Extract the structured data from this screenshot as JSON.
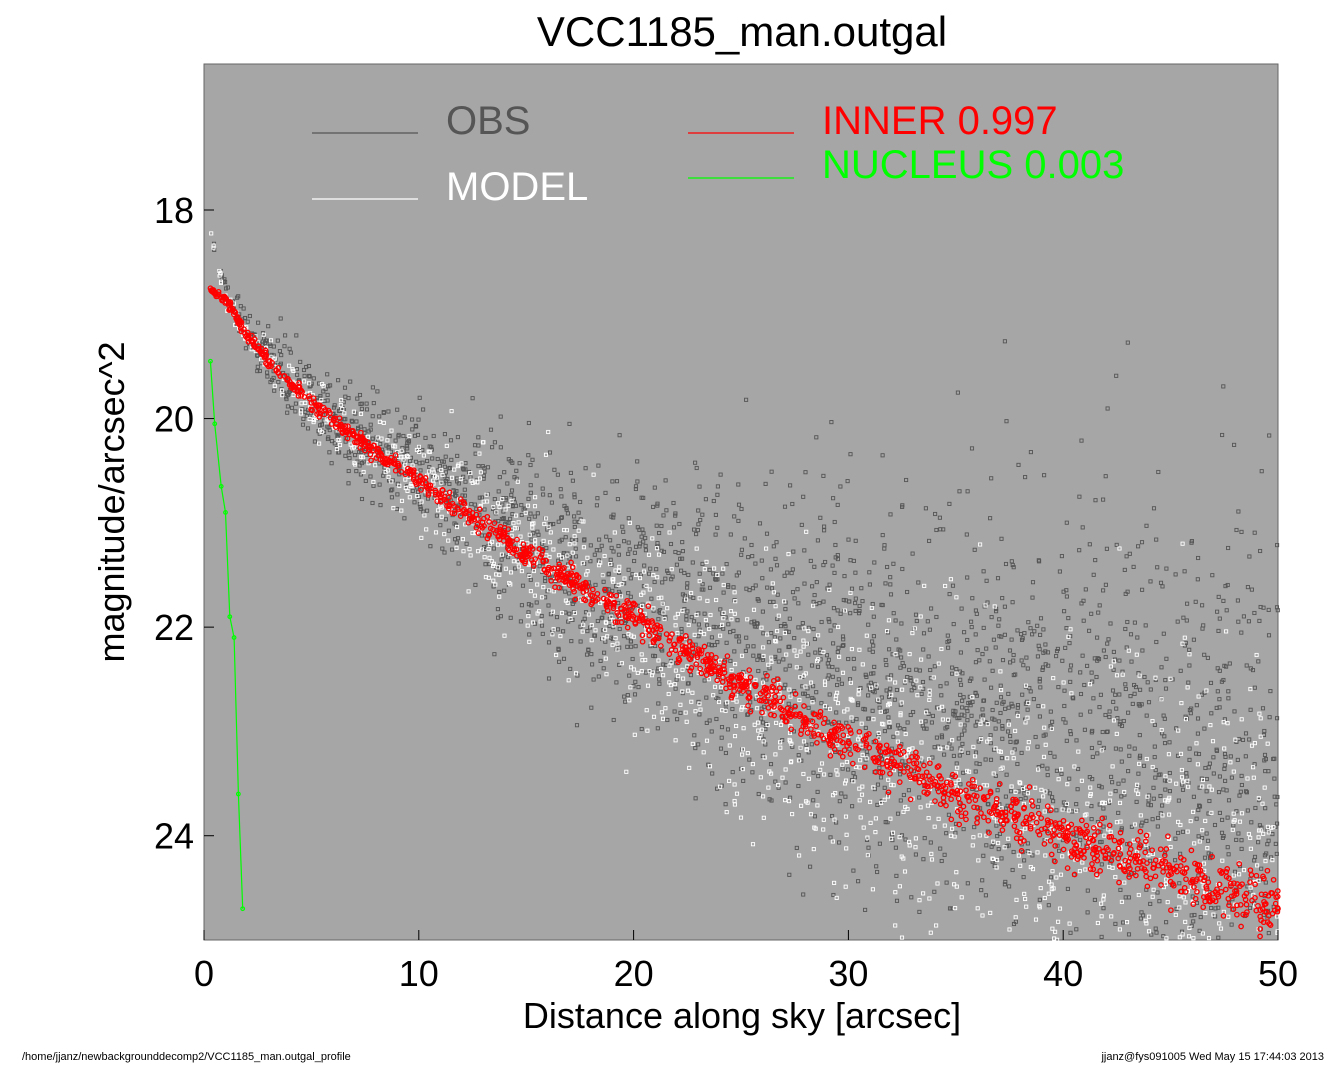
{
  "chart_data": {
    "type": "scatter",
    "title": "VCC1185_man.outgal",
    "xlabel": "Distance along sky [arcsec]",
    "ylabel": "magnitude/arcsec^2",
    "xlim": [
      0,
      50
    ],
    "ylim": [
      25.0,
      16.6
    ],
    "y_inverted": true,
    "xticks": [
      0,
      10,
      20,
      30,
      40,
      50
    ],
    "yticks": [
      18,
      20,
      22,
      24
    ],
    "xtick_labels": [
      "0",
      "10",
      "20",
      "30",
      "40",
      "50"
    ],
    "ytick_labels": [
      "18",
      "20",
      "22",
      "24"
    ],
    "background_color": "#a6a6a6",
    "grid": false,
    "legend": {
      "placement": "top",
      "entries": [
        {
          "label": "OBS",
          "value": "",
          "color": "#555555"
        },
        {
          "label": "MODEL",
          "value": "",
          "color": "#ffffff"
        },
        {
          "label": "INNER",
          "value": "0.997",
          "color": "#ff0000"
        },
        {
          "label": "NUCLEUS",
          "value": "0.003",
          "color": "#00ff00"
        }
      ]
    },
    "series": [
      {
        "name": "OBS",
        "color": "#555555",
        "marker": "square-open",
        "x": [
          0.3,
          0.5,
          1.0,
          2.0,
          3.0,
          5.0,
          7.5,
          10,
          12.5,
          15,
          17.5,
          20,
          25,
          30,
          35,
          40,
          45,
          50
        ],
        "y": [
          18.1,
          18.3,
          18.75,
          19.1,
          19.4,
          19.8,
          20.15,
          20.45,
          20.75,
          21.0,
          21.2,
          21.35,
          21.6,
          21.8,
          21.95,
          22.05,
          22.15,
          22.2
        ]
      },
      {
        "name": "MODEL",
        "color": "#ffffff",
        "marker": "square-open",
        "x": [
          0.3,
          0.5,
          1.0,
          2.0,
          3.0,
          5.0,
          7.5,
          10,
          12.5,
          15,
          17.5,
          20,
          25,
          30,
          35,
          40,
          45,
          50
        ],
        "y": [
          18.2,
          18.45,
          18.85,
          19.2,
          19.45,
          19.85,
          20.25,
          20.6,
          20.95,
          21.3,
          21.6,
          21.9,
          22.55,
          23.1,
          23.6,
          24.0,
          24.35,
          24.7
        ]
      },
      {
        "name": "INNER",
        "color": "#ff0000",
        "marker": "circle-open",
        "x": [
          0.3,
          0.5,
          1.0,
          2.0,
          3.0,
          5.0,
          7.5,
          10,
          12.5,
          15,
          17.5,
          20,
          25,
          30,
          35,
          40,
          45,
          50
        ],
        "y": [
          18.75,
          18.8,
          18.85,
          19.2,
          19.45,
          19.85,
          20.25,
          20.6,
          20.95,
          21.3,
          21.6,
          21.9,
          22.55,
          23.1,
          23.6,
          24.0,
          24.35,
          24.7
        ]
      },
      {
        "name": "NUCLEUS",
        "color": "#00ff00",
        "marker": "circle-open",
        "x": [
          0.3,
          0.5,
          0.8,
          1.0,
          1.2,
          1.4,
          1.6,
          1.8
        ],
        "y": [
          19.45,
          20.05,
          20.65,
          20.9,
          21.9,
          22.1,
          23.6,
          24.7
        ]
      }
    ]
  },
  "footer": {
    "path": "/home/jjanz/newbackgrounddecomp2/VCC1185_man.outgal_profile",
    "stamp": "jjanz@fys091005  Wed May 15 17:44:03 2013"
  }
}
